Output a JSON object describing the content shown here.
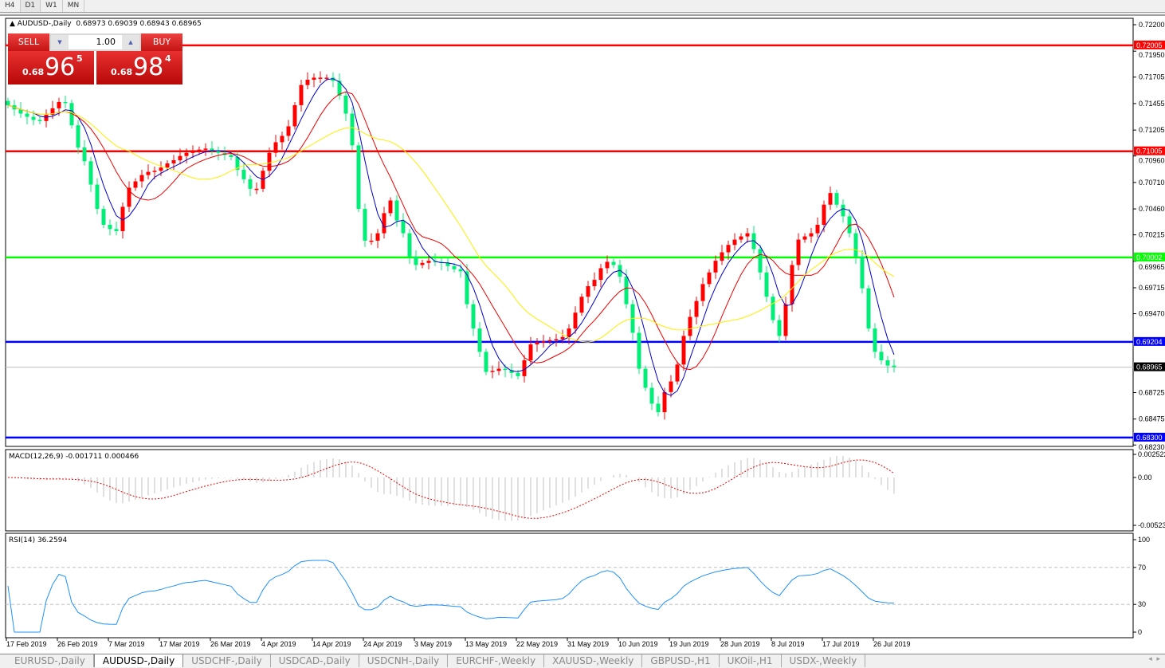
{
  "timeframes": [
    "H4",
    "D1",
    "W1",
    "MN"
  ],
  "active_timeframe": "D1",
  "chart": {
    "title": "AUDUSD-,Daily",
    "ohlc": "0.68973 0.69039 0.68943 0.68965"
  },
  "trade_panel": {
    "sell_label": "SELL",
    "buy_label": "BUY",
    "lot": "1.00",
    "sell_prefix": "0.68",
    "sell_big": "96",
    "sell_sup": "5",
    "buy_prefix": "0.68",
    "buy_big": "98",
    "buy_sup": "4"
  },
  "macd": {
    "label": "MACD(12,26,9) -0.001711 0.000466",
    "ticks": [
      "0.002522",
      "0.00",
      "-0.00523"
    ]
  },
  "rsi": {
    "label": "RSI(14) 36.2594",
    "ticks": [
      "100",
      "70",
      "30",
      "0"
    ]
  },
  "colors": {
    "bull": "#ff0000",
    "bear": "#00ee77",
    "ma_fast": "#0000cc",
    "ma_mid": "#ee0000",
    "ma_slow": "#ffee00",
    "macd_hist": "#c0c0c0",
    "macd_signal": "#ee0000",
    "rsi": "#1e90ff"
  },
  "tabs": [
    "EURUSD-,Daily",
    "AUDUSD-,Daily",
    "USDCHF-,Daily",
    "USDCAD-,Daily",
    "USDCNH-,Daily",
    "EURCHF-,Weekly",
    "XAUUSD-,Weekly",
    "GBPUSD-,H1",
    "UKOil-,H1",
    "USDX-,Weekly"
  ],
  "active_tab": "AUDUSD-,Daily",
  "chart_data": {
    "type": "candlestick",
    "ylim": [
      0.6823,
      0.7225
    ],
    "price_ticks": [
      "0.72200",
      "0.71950",
      "0.71705",
      "0.71455",
      "0.71205",
      "0.70960",
      "0.70710",
      "0.70460",
      "0.70215",
      "0.69965",
      "0.69715",
      "0.69470",
      "0.68725",
      "0.68475",
      "0.68230"
    ],
    "x_labels": [
      "17 Feb 2019",
      "26 Feb 2019",
      "7 Mar 2019",
      "17 Mar 2019",
      "26 Mar 2019",
      "4 Apr 2019",
      "14 Apr 2019",
      "24 Apr 2019",
      "3 May 2019",
      "13 May 2019",
      "22 May 2019",
      "31 May 2019",
      "10 Jun 2019",
      "19 Jun 2019",
      "28 Jun 2019",
      "8 Jul 2019",
      "17 Jul 2019",
      "26 Jul 2019"
    ],
    "closes": [
      0.7144,
      0.714,
      0.7136,
      0.7133,
      0.713,
      0.7129,
      0.7135,
      0.7141,
      0.7147,
      0.7146,
      0.7125,
      0.7104,
      0.7091,
      0.7069,
      0.7046,
      0.7031,
      0.7027,
      0.7025,
      0.7048,
      0.7066,
      0.7072,
      0.7078,
      0.7081,
      0.7082,
      0.7085,
      0.7089,
      0.7092,
      0.7096,
      0.7099,
      0.71,
      0.7102,
      0.7103,
      0.7101,
      0.7099,
      0.7097,
      0.7095,
      0.7083,
      0.7074,
      0.7065,
      0.7065,
      0.7082,
      0.7099,
      0.7109,
      0.7115,
      0.7124,
      0.7144,
      0.7163,
      0.7168,
      0.717,
      0.717,
      0.717,
      0.7167,
      0.7153,
      0.7136,
      0.7106,
      0.7046,
      0.7016,
      0.7016,
      0.7023,
      0.7042,
      0.7054,
      0.7035,
      0.7023,
      0.7001,
      0.6993,
      0.6995,
      0.6997,
      0.6996,
      0.6995,
      0.6992,
      0.6989,
      0.6987,
      0.6956,
      0.6933,
      0.6911,
      0.6892,
      0.6893,
      0.6895,
      0.6894,
      0.6891,
      0.6888,
      0.6903,
      0.6918,
      0.692,
      0.6921,
      0.6922,
      0.6923,
      0.6925,
      0.6933,
      0.6948,
      0.6963,
      0.6973,
      0.6979,
      0.699,
      0.6996,
      0.6993,
      0.6982,
      0.6956,
      0.6929,
      0.6895,
      0.6877,
      0.6862,
      0.6854,
      0.6873,
      0.6883,
      0.6899,
      0.6926,
      0.6944,
      0.6959,
      0.6975,
      0.6986,
      0.6997,
      0.7005,
      0.7012,
      0.7017,
      0.702,
      0.7023,
      0.7008,
      0.6986,
      0.6963,
      0.6941,
      0.6926,
      0.6956,
      0.6993,
      0.7017,
      0.702,
      0.7023,
      0.7031,
      0.705,
      0.7061,
      0.705,
      0.7039,
      0.7023,
      0.7001,
      0.6971,
      0.6933,
      0.6911,
      0.6903,
      0.6898,
      0.68965
    ],
    "moving_average_periods": [
      5,
      10,
      20
    ],
    "levels": [
      {
        "label": "0.72005",
        "value": 0.72005,
        "color": "#ff0000"
      },
      {
        "label": "0.71005",
        "value": 0.71005,
        "color": "#ff0000"
      },
      {
        "label": "0.70002",
        "value": 0.70002,
        "color": "#00ff00"
      },
      {
        "label": "0.69204",
        "value": 0.69204,
        "color": "#0000ff"
      },
      {
        "label": "0.68300",
        "value": 0.683,
        "color": "#0000ff"
      }
    ],
    "current_price": {
      "label": "0.68965",
      "value": 0.68965
    }
  }
}
